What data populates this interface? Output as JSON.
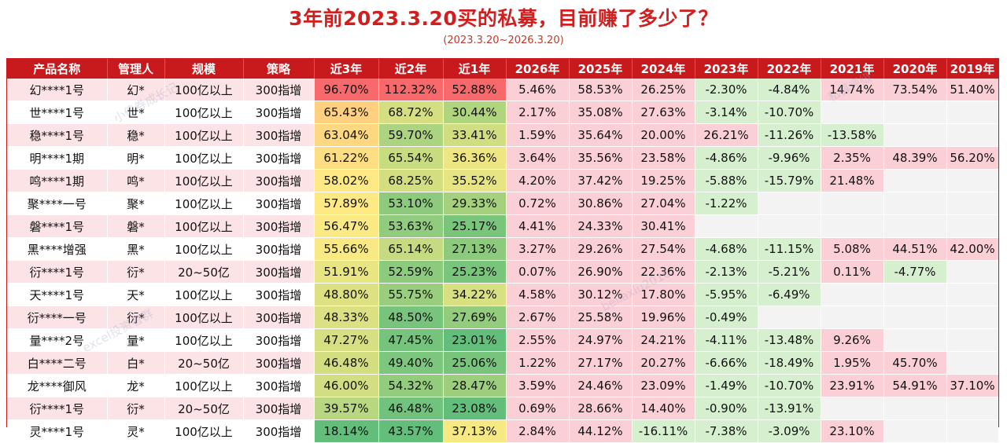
{
  "title": "3年前2023.3.20买的私募，目前赚了多少了？",
  "subtitle": "(2023.3.20~2026.3.20)",
  "columns": [
    "产品名称",
    "管理人",
    "规模",
    "策略",
    "近3年",
    "近2年",
    "近1年",
    "2026年",
    "2025年",
    "2024年",
    "2023年",
    "2022年",
    "2021年",
    "2020年",
    "2019年"
  ],
  "watermarks": [
    "小债券成长记",
    "bellaxiu2016",
    "excel投资者群",
    "私募评级"
  ],
  "rows": [
    {
      "name": "幻****1号",
      "mgr": "幻*",
      "scale": "100亿以上",
      "strategy": "300指增",
      "r3": "96.70%",
      "r2": "112.32%",
      "r1": "52.88%",
      "y2026": "5.46%",
      "y2025": "58.53%",
      "y2024": "26.25%",
      "y2023": "-2.30%",
      "y2022": "-4.84%",
      "y2021": "14.74%",
      "y2020": "73.54%",
      "y2019": "51.40%"
    },
    {
      "name": "世****1号",
      "mgr": "世*",
      "scale": "100亿以上",
      "strategy": "300指增",
      "r3": "65.43%",
      "r2": "68.72%",
      "r1": "30.44%",
      "y2026": "2.17%",
      "y2025": "35.08%",
      "y2024": "27.63%",
      "y2023": "-3.14%",
      "y2022": "-10.70%",
      "y2021": "",
      "y2020": "",
      "y2019": ""
    },
    {
      "name": "稳****1号",
      "mgr": "稳*",
      "scale": "100亿以上",
      "strategy": "300指增",
      "r3": "63.04%",
      "r2": "59.70%",
      "r1": "33.41%",
      "y2026": "1.59%",
      "y2025": "35.64%",
      "y2024": "20.00%",
      "y2023": "26.21%",
      "y2022": "-11.26%",
      "y2021": "-13.58%",
      "y2020": "",
      "y2019": ""
    },
    {
      "name": "明****1期",
      "mgr": "明*",
      "scale": "100亿以上",
      "strategy": "300指增",
      "r3": "61.22%",
      "r2": "65.54%",
      "r1": "36.36%",
      "y2026": "3.64%",
      "y2025": "35.56%",
      "y2024": "23.58%",
      "y2023": "-4.86%",
      "y2022": "-9.96%",
      "y2021": "2.35%",
      "y2020": "48.39%",
      "y2019": "56.20%"
    },
    {
      "name": "鸣****1期",
      "mgr": "鸣*",
      "scale": "100亿以上",
      "strategy": "300指增",
      "r3": "58.02%",
      "r2": "68.25%",
      "r1": "35.52%",
      "y2026": "4.20%",
      "y2025": "37.42%",
      "y2024": "19.25%",
      "y2023": "-5.88%",
      "y2022": "-15.79%",
      "y2021": "21.48%",
      "y2020": "",
      "y2019": ""
    },
    {
      "name": "聚****一号",
      "mgr": "聚*",
      "scale": "100亿以上",
      "strategy": "300指增",
      "r3": "57.89%",
      "r2": "53.10%",
      "r1": "29.33%",
      "y2026": "0.72%",
      "y2025": "30.86%",
      "y2024": "27.04%",
      "y2023": "-1.22%",
      "y2022": "",
      "y2021": "",
      "y2020": "",
      "y2019": ""
    },
    {
      "name": "磐****1号",
      "mgr": "磐*",
      "scale": "100亿以上",
      "strategy": "300指增",
      "r3": "56.47%",
      "r2": "53.63%",
      "r1": "25.17%",
      "y2026": "4.41%",
      "y2025": "24.33%",
      "y2024": "30.41%",
      "y2023": "",
      "y2022": "",
      "y2021": "",
      "y2020": "",
      "y2019": ""
    },
    {
      "name": "黑****增强",
      "mgr": "黑*",
      "scale": "100亿以上",
      "strategy": "300指增",
      "r3": "55.66%",
      "r2": "65.14%",
      "r1": "27.13%",
      "y2026": "3.27%",
      "y2025": "29.26%",
      "y2024": "27.54%",
      "y2023": "-4.68%",
      "y2022": "-11.15%",
      "y2021": "5.08%",
      "y2020": "44.51%",
      "y2019": "42.00%"
    },
    {
      "name": "衍****1号",
      "mgr": "衍*",
      "scale": "20~50亿",
      "strategy": "300指增",
      "r3": "51.91%",
      "r2": "52.59%",
      "r1": "25.23%",
      "y2026": "0.07%",
      "y2025": "26.90%",
      "y2024": "22.36%",
      "y2023": "-2.13%",
      "y2022": "-5.21%",
      "y2021": "0.11%",
      "y2020": "-4.77%",
      "y2019": ""
    },
    {
      "name": "天****1号",
      "mgr": "天*",
      "scale": "100亿以上",
      "strategy": "300指增",
      "r3": "48.80%",
      "r2": "55.75%",
      "r1": "34.22%",
      "y2026": "4.58%",
      "y2025": "30.12%",
      "y2024": "17.80%",
      "y2023": "-5.95%",
      "y2022": "-6.49%",
      "y2021": "",
      "y2020": "",
      "y2019": ""
    },
    {
      "name": "衍****一号",
      "mgr": "衍*",
      "scale": "100亿以上",
      "strategy": "300指增",
      "r3": "48.33%",
      "r2": "48.50%",
      "r1": "27.69%",
      "y2026": "2.67%",
      "y2025": "25.58%",
      "y2024": "19.96%",
      "y2023": "-0.49%",
      "y2022": "",
      "y2021": "",
      "y2020": "",
      "y2019": ""
    },
    {
      "name": "量****2号",
      "mgr": "量*",
      "scale": "100亿以上",
      "strategy": "300指增",
      "r3": "47.27%",
      "r2": "47.45%",
      "r1": "23.01%",
      "y2026": "2.55%",
      "y2025": "24.97%",
      "y2024": "24.21%",
      "y2023": "-4.11%",
      "y2022": "-13.48%",
      "y2021": "9.26%",
      "y2020": "",
      "y2019": ""
    },
    {
      "name": "白****二号",
      "mgr": "白*",
      "scale": "20~50亿",
      "strategy": "300指增",
      "r3": "46.48%",
      "r2": "49.40%",
      "r1": "25.06%",
      "y2026": "1.22%",
      "y2025": "27.17%",
      "y2024": "20.27%",
      "y2023": "-6.66%",
      "y2022": "-18.49%",
      "y2021": "1.95%",
      "y2020": "45.70%",
      "y2019": ""
    },
    {
      "name": "龙****御风",
      "mgr": "龙*",
      "scale": "100亿以上",
      "strategy": "300指增",
      "r3": "46.00%",
      "r2": "54.32%",
      "r1": "28.47%",
      "y2026": "3.59%",
      "y2025": "24.46%",
      "y2024": "23.09%",
      "y2023": "-1.49%",
      "y2022": "-10.70%",
      "y2021": "23.91%",
      "y2020": "54.91%",
      "y2019": "37.10%"
    },
    {
      "name": "衍****1号",
      "mgr": "衍*",
      "scale": "20~50亿",
      "strategy": "300指增",
      "r3": "39.57%",
      "r2": "46.48%",
      "r1": "23.08%",
      "y2026": "0.69%",
      "y2025": "28.66%",
      "y2024": "14.40%",
      "y2023": "-0.90%",
      "y2022": "-13.91%",
      "y2021": "",
      "y2020": "",
      "y2019": ""
    },
    {
      "name": "灵****1号",
      "mgr": "灵*",
      "scale": "100亿以上",
      "strategy": "300指增",
      "r3": "18.14%",
      "r2": "43.57%",
      "r1": "37.13%",
      "y2026": "2.84%",
      "y2025": "44.12%",
      "y2024": "-16.11%",
      "y2023": "-7.38%",
      "y2022": "-3.09%",
      "y2021": "23.10%",
      "y2020": "",
      "y2019": ""
    }
  ],
  "colors": {
    "header_bg": "#c8191c",
    "title": "#d11f1f",
    "positive_bg": "#fbcfd6",
    "negative_bg": "#d6f0cf",
    "empty_bg": "#f3f3f3"
  }
}
